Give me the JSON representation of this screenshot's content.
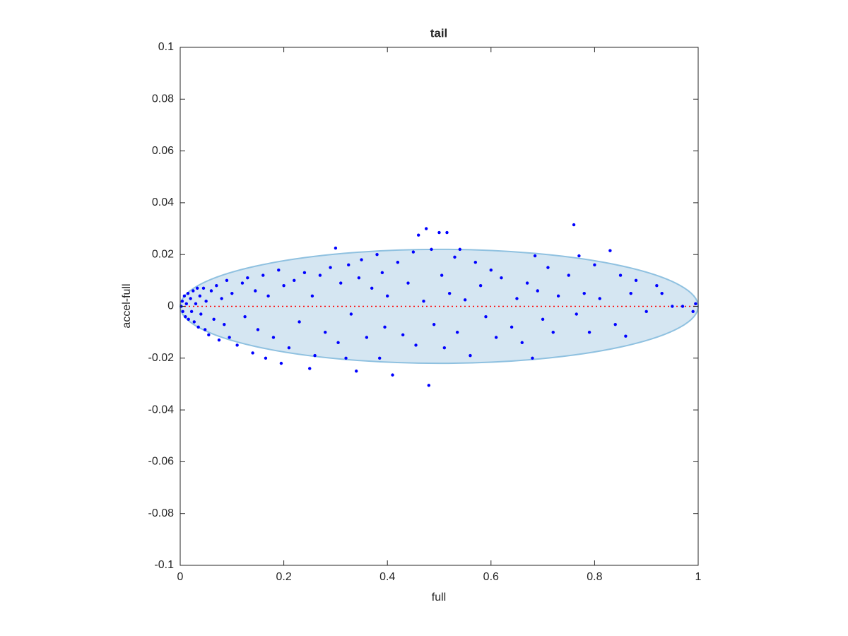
{
  "chart_data": {
    "type": "scatter",
    "title": "tail",
    "xlabel": "full",
    "ylabel": "accel-full",
    "xlim": [
      0,
      1
    ],
    "ylim": [
      -0.1,
      0.1
    ],
    "xticks": [
      0,
      0.2,
      0.4,
      0.6,
      0.8,
      1
    ],
    "yticks": [
      -0.1,
      -0.08,
      -0.06,
      -0.04,
      -0.02,
      0,
      0.02,
      0.04,
      0.06,
      0.08,
      0.1
    ],
    "ellipse": {
      "center": [
        0.5,
        0
      ],
      "radii": [
        0.5,
        0.022
      ],
      "color": "#d5e6f2",
      "edge_color": "#8fc1e0"
    },
    "reference_line": {
      "y": 0,
      "color": "#ff0000"
    },
    "series": [
      {
        "color": "#0000ff",
        "x": [
          0.002,
          0.004,
          0.005,
          0.008,
          0.01,
          0.012,
          0.015,
          0.016,
          0.02,
          0.022,
          0.025,
          0.027,
          0.03,
          0.033,
          0.035,
          0.038,
          0.04,
          0.045,
          0.048,
          0.05,
          0.055,
          0.06,
          0.065,
          0.07,
          0.075,
          0.08,
          0.085,
          0.09,
          0.095,
          0.1,
          0.11,
          0.12,
          0.125,
          0.13,
          0.14,
          0.145,
          0.15,
          0.16,
          0.165,
          0.17,
          0.18,
          0.19,
          0.195,
          0.2,
          0.21,
          0.22,
          0.23,
          0.24,
          0.25,
          0.255,
          0.26,
          0.27,
          0.28,
          0.29,
          0.3,
          0.305,
          0.31,
          0.32,
          0.325,
          0.33,
          0.34,
          0.345,
          0.35,
          0.36,
          0.37,
          0.38,
          0.385,
          0.39,
          0.395,
          0.4,
          0.41,
          0.42,
          0.43,
          0.44,
          0.45,
          0.455,
          0.46,
          0.47,
          0.475,
          0.48,
          0.485,
          0.49,
          0.5,
          0.505,
          0.51,
          0.515,
          0.52,
          0.53,
          0.535,
          0.54,
          0.55,
          0.56,
          0.57,
          0.58,
          0.59,
          0.6,
          0.61,
          0.62,
          0.64,
          0.65,
          0.66,
          0.67,
          0.68,
          0.685,
          0.69,
          0.7,
          0.71,
          0.72,
          0.73,
          0.75,
          0.76,
          0.765,
          0.77,
          0.78,
          0.79,
          0.8,
          0.81,
          0.83,
          0.84,
          0.85,
          0.86,
          0.87,
          0.88,
          0.9,
          0.92,
          0.93,
          0.95,
          0.97,
          0.99,
          0.995
        ],
        "y": [
          0,
          0.002,
          -0.002,
          0.004,
          -0.004,
          0.001,
          0.005,
          -0.005,
          0.003,
          -0.002,
          0.006,
          -0.006,
          0.001,
          0.007,
          -0.008,
          0.004,
          -0.003,
          0.007,
          -0.009,
          0.002,
          -0.011,
          0.006,
          -0.005,
          0.008,
          -0.013,
          0.003,
          -0.007,
          0.01,
          -0.012,
          0.005,
          -0.015,
          0.009,
          -0.004,
          0.011,
          -0.018,
          0.006,
          -0.009,
          0.012,
          -0.02,
          0.004,
          -0.012,
          0.014,
          -0.022,
          0.008,
          -0.016,
          0.01,
          -0.006,
          0.013,
          -0.024,
          0.004,
          -0.019,
          0.012,
          -0.01,
          0.015,
          0.0225,
          -0.014,
          0.009,
          -0.02,
          0.016,
          -0.003,
          -0.025,
          0.011,
          0.018,
          -0.012,
          0.007,
          0.02,
          -0.02,
          0.013,
          -0.008,
          0.004,
          -0.0265,
          0.017,
          -0.011,
          0.009,
          0.021,
          -0.015,
          0.0275,
          0.002,
          0.03,
          -0.0305,
          0.022,
          -0.007,
          0.0285,
          0.012,
          -0.016,
          0.0285,
          0.005,
          0.019,
          -0.01,
          0.022,
          0.0025,
          -0.019,
          0.017,
          0.008,
          -0.004,
          0.014,
          -0.012,
          0.011,
          -0.008,
          0.003,
          -0.014,
          0.009,
          -0.02,
          0.0195,
          0.006,
          -0.005,
          0.015,
          -0.01,
          0.004,
          0.012,
          0.0315,
          -0.003,
          0.0195,
          0.005,
          -0.01,
          0.016,
          0.003,
          0.0215,
          -0.007,
          0.012,
          -0.0115,
          0.005,
          0.01,
          -0.002,
          0.008,
          0.005,
          0,
          0,
          -0.002,
          0.001
        ]
      }
    ]
  }
}
